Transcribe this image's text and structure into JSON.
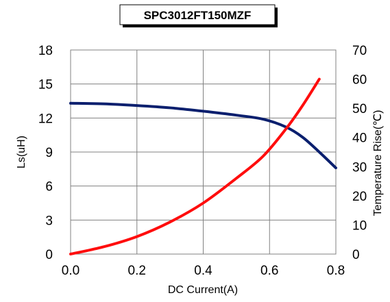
{
  "chart_data": {
    "type": "line",
    "title": "SPC3012FT150MZF",
    "xlabel": "DC Current(A)",
    "ylabel": "Ls(uH)",
    "y2label": "Temperature Rise(℃)",
    "xlim": [
      0,
      0.8
    ],
    "ylim": [
      0,
      18
    ],
    "y2lim": [
      0,
      70
    ],
    "x_ticks": [
      "0.0",
      "0.2",
      "0.4",
      "0.6",
      "0.8"
    ],
    "y_ticks": [
      "0",
      "3",
      "6",
      "9",
      "12",
      "15",
      "18"
    ],
    "y2_ticks": [
      "0",
      "10",
      "20",
      "30",
      "40",
      "50",
      "60",
      "70"
    ],
    "grid": true,
    "legend": "none",
    "series": [
      {
        "axis": "left",
        "color": "#0a1f6e",
        "points": [
          [
            0.0,
            13.3
          ],
          [
            0.1,
            13.25
          ],
          [
            0.2,
            13.1
          ],
          [
            0.3,
            12.9
          ],
          [
            0.4,
            12.6
          ],
          [
            0.5,
            12.25
          ],
          [
            0.58,
            11.9
          ],
          [
            0.65,
            11.2
          ],
          [
            0.7,
            10.3
          ],
          [
            0.75,
            9.0
          ],
          [
            0.8,
            7.6
          ]
        ]
      },
      {
        "axis": "right",
        "color": "#ff0d0d",
        "points": [
          [
            0.0,
            0.0
          ],
          [
            0.1,
            2.5
          ],
          [
            0.2,
            6.0
          ],
          [
            0.3,
            11.0
          ],
          [
            0.4,
            17.5
          ],
          [
            0.5,
            26.0
          ],
          [
            0.58,
            33.5
          ],
          [
            0.65,
            43.0
          ],
          [
            0.7,
            51.0
          ],
          [
            0.75,
            60.0
          ]
        ]
      }
    ]
  }
}
